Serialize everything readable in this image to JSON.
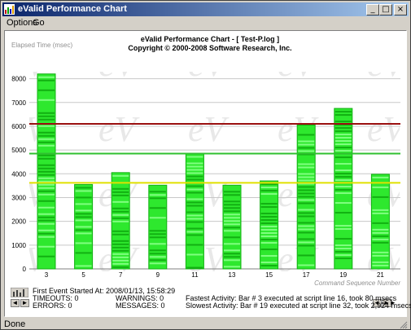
{
  "window": {
    "title": "eValid Performance Chart"
  },
  "menu": {
    "items": [
      "Options",
      "Go"
    ]
  },
  "status": {
    "text": "Done"
  },
  "colors": {
    "bar_dark": "#12b012",
    "bar_light": "#2ee82e",
    "bar_stripe": "#80ff80",
    "line_max": "#9a1010",
    "line_avg": "#30c030",
    "line_min": "#e0e000",
    "title_start": "#0a246a",
    "title_end": "#a6caf0"
  },
  "chart_data": {
    "type": "bar",
    "title": "eValid Performance Chart - [ Test-P.log ]",
    "subtitle": "Copyright © 2000-2008 Software Research, Inc.",
    "ylabel": "Elapsed Time (msec)",
    "xlabel": "Command Sequence Number",
    "categories": [
      "3",
      "5",
      "7",
      "9",
      "11",
      "13",
      "15",
      "17",
      "19",
      "21"
    ],
    "values": [
      8200,
      3550,
      4050,
      3520,
      4850,
      3520,
      3700,
      6050,
      6750,
      3980
    ],
    "ylim": [
      0,
      8500
    ],
    "yticks": [
      0,
      1000,
      2000,
      3000,
      4000,
      5000,
      6000,
      7000,
      8000
    ],
    "grid": true,
    "reference_lines": [
      6100,
      4850,
      3620
    ]
  },
  "info": {
    "first_event": "First Event Started At: 2008/01/13, 15:58:29",
    "timeouts": "TIMEOUTS: 0",
    "errors": "ERRORS: 0",
    "warnings": "WARNINGS: 0",
    "messages": "MESSAGES: 0",
    "fastest": "Fastest Activity: Bar # 3 executed at script line 16, took 80 msecs",
    "slowest": "Slowest Activity: Bar # 19 executed at script line 32, took 2,924 msecs"
  },
  "nav": {
    "left": "◄",
    "right": "►",
    "first": "◄◄",
    "last": "►►"
  }
}
